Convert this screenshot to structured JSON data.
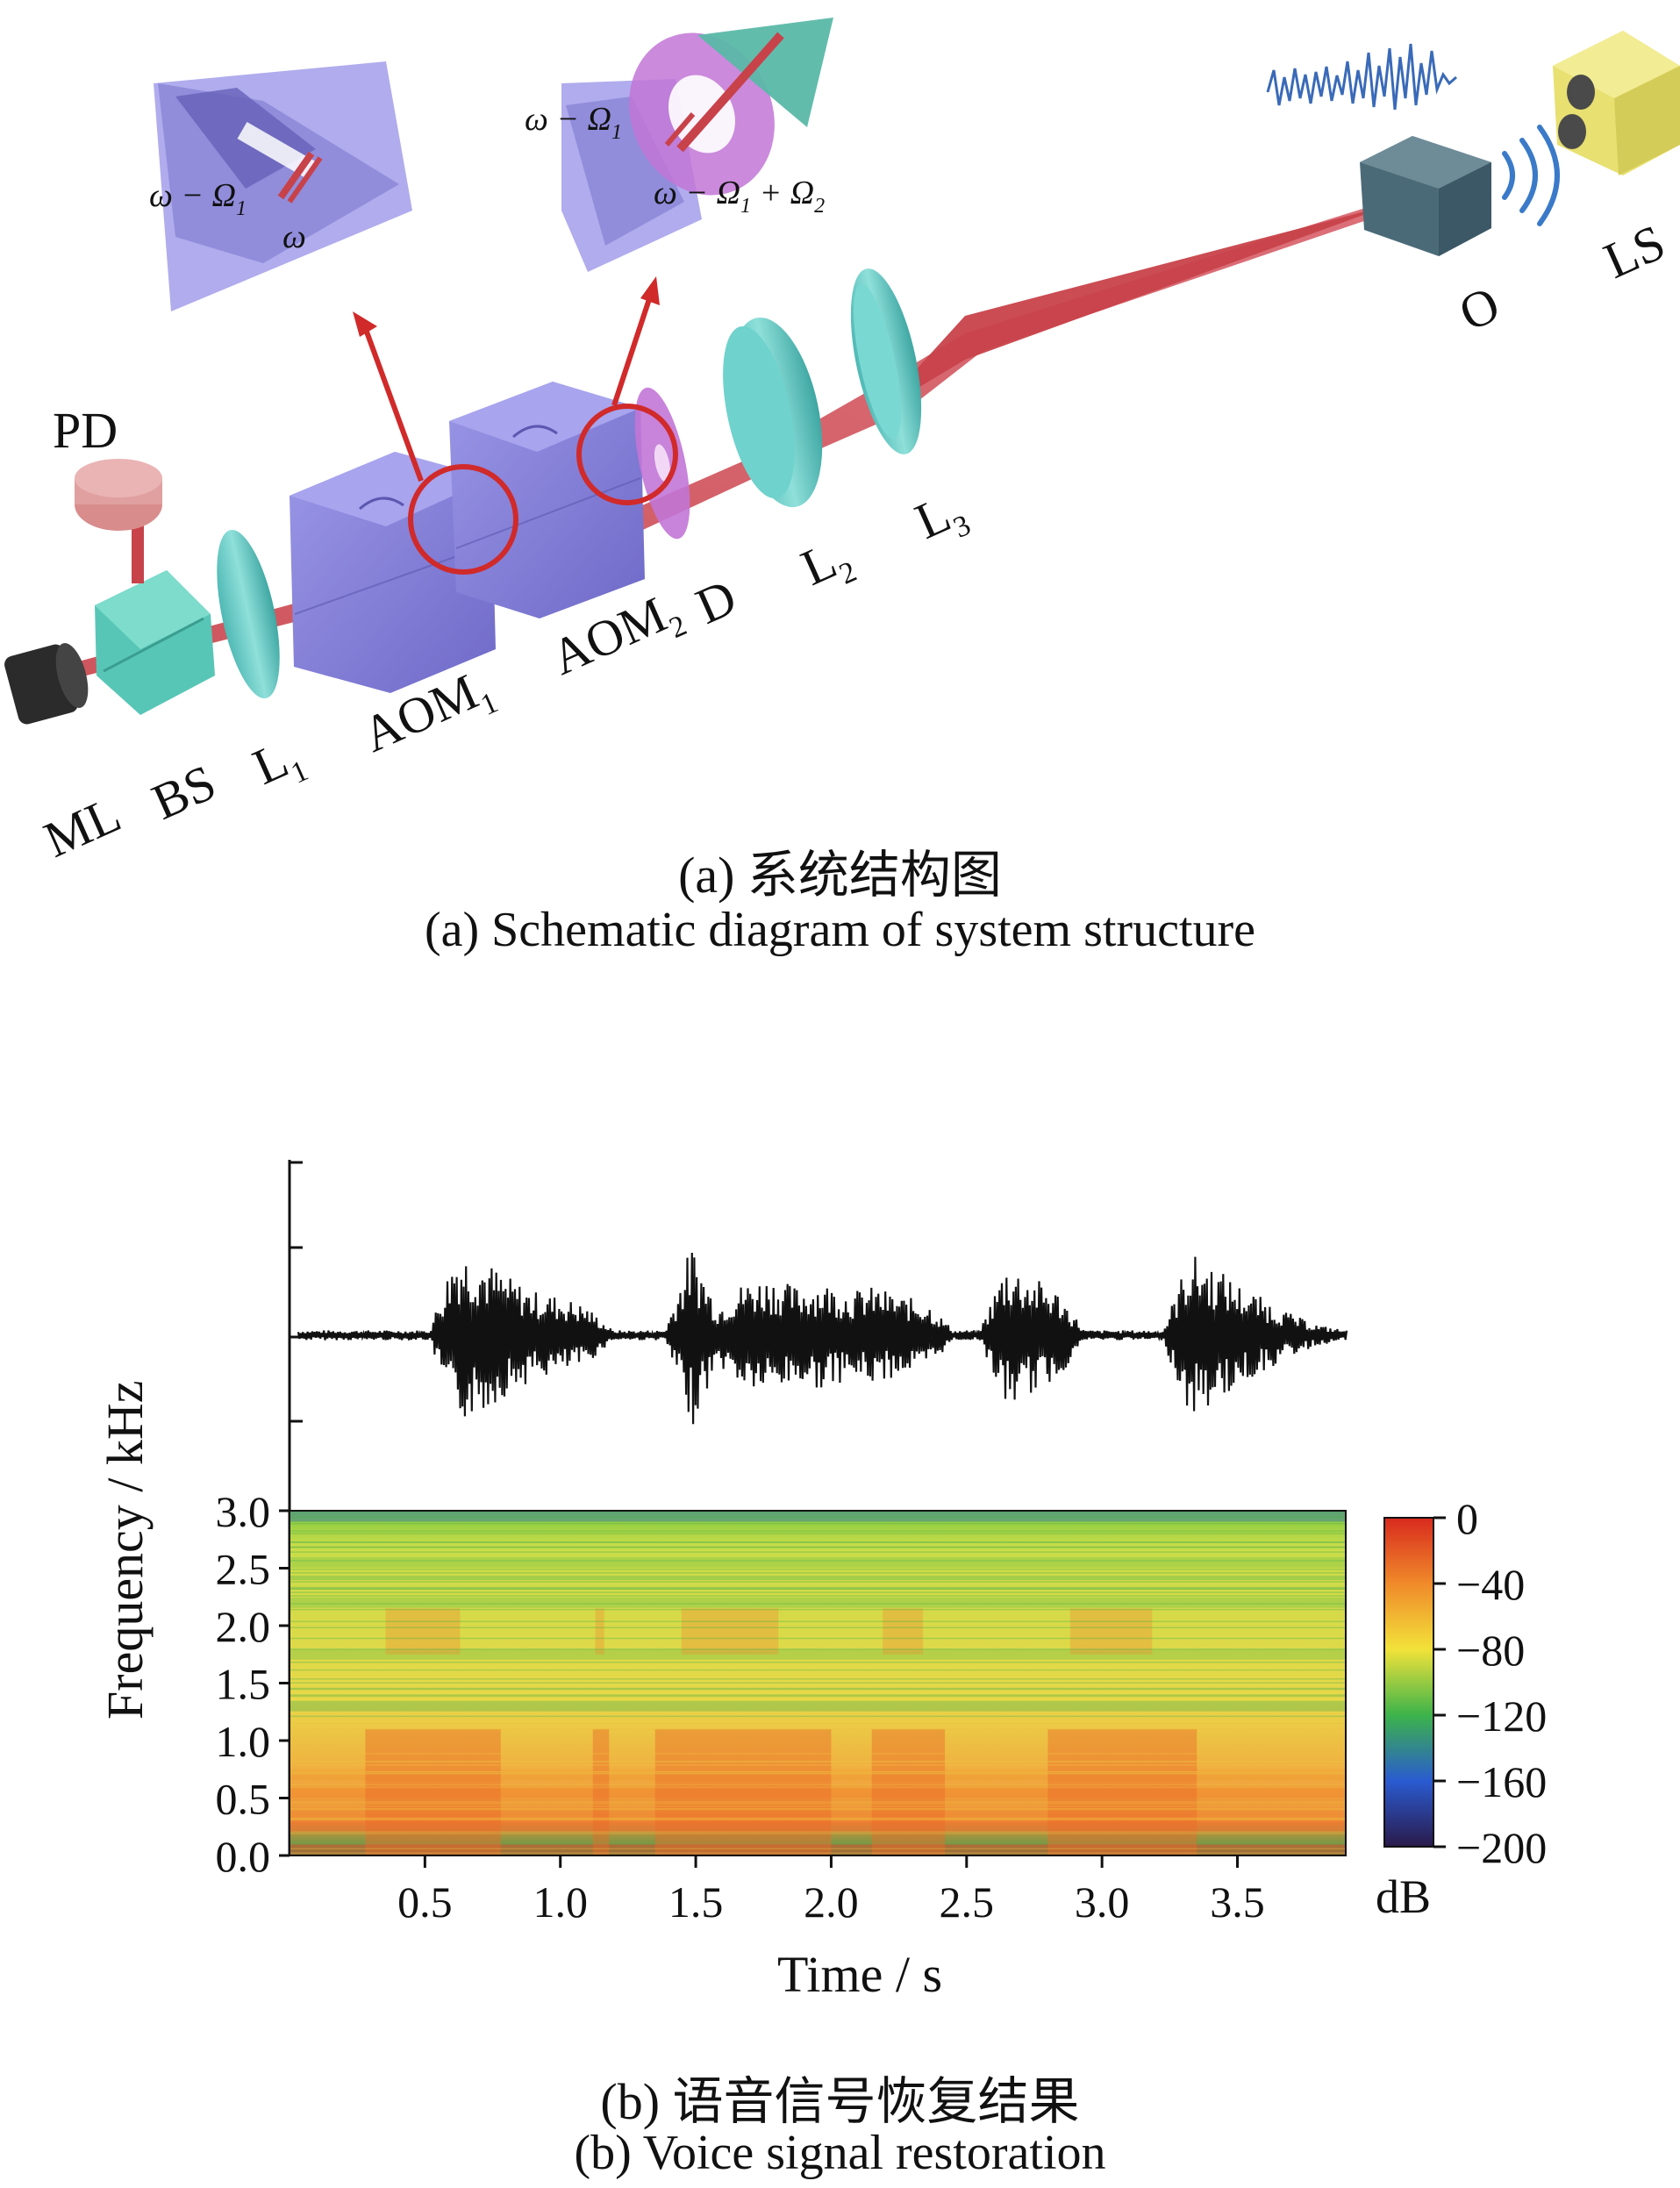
{
  "diagram": {
    "labels": {
      "ml": "ML",
      "bs": "BS",
      "l1": "L",
      "l1_sub": "1",
      "aom1": "AOM",
      "aom1_sub": "1",
      "aom2": "AOM",
      "aom2_sub": "2",
      "d": "D",
      "l2": "L",
      "l2_sub": "2",
      "l3": "L",
      "l3_sub": "3",
      "o": "O",
      "ls": "LS",
      "pd": "PD"
    },
    "inset1": {
      "beam_a": "ω − Ω",
      "beam_a_sub": "1",
      "beam_b": "ω"
    },
    "inset2": {
      "beam_a": "ω − Ω",
      "beam_a_sub": "1",
      "beam_b": "ω − Ω",
      "beam_b_sub": "1",
      "beam_b_mid": " + Ω",
      "beam_b_sub2": "2"
    },
    "colors": {
      "aom": "#8a86d8",
      "lens": "#5ec8c4",
      "beam": "#c0404a",
      "pd": "#d98c8c",
      "speaker": "#e8e070",
      "object": "#4a6a78",
      "d_plate": "#c276d6"
    }
  },
  "caption_a": {
    "zh": "(a) 系统结构图",
    "en": "(a) Schematic diagram of system structure"
  },
  "chart_data": {
    "type": "heatmap",
    "title": "",
    "xlabel": "Time / s",
    "ylabel": "Frequency / kHz",
    "x_ticks": [
      "0.5",
      "1.0",
      "1.5",
      "2.0",
      "2.5",
      "3.0",
      "3.5"
    ],
    "y_ticks": [
      "0.0",
      "0.5",
      "1.0",
      "1.5",
      "2.0",
      "2.5",
      "3.0"
    ],
    "xlim": [
      0.0,
      3.9
    ],
    "ylim": [
      0.0,
      3.0
    ],
    "colorbar": {
      "ticks": [
        "0",
        "−40",
        "−80",
        "−120",
        "−160",
        "−200"
      ],
      "range": [
        -200,
        0
      ],
      "unit": "dB",
      "colors": [
        "#d82a1e",
        "#f08a2a",
        "#f2e23a",
        "#3cb34a",
        "#2a5bd0",
        "#2a1a4a"
      ]
    },
    "speech_segments_s": [
      [
        0.28,
        0.78
      ],
      [
        1.12,
        1.18
      ],
      [
        1.35,
        2.0
      ],
      [
        2.15,
        2.42
      ],
      [
        2.8,
        3.35
      ]
    ],
    "waveform_amplitude_rel": [
      0.05,
      0.05,
      0.05,
      0.05,
      0.05,
      0.05,
      0.9,
      0.8,
      0.6,
      0.45,
      0.4,
      0.3,
      0.05,
      0.05,
      0.05,
      0.95,
      0.3,
      0.55,
      0.6,
      0.5,
      0.55,
      0.45,
      0.5,
      0.4,
      0.35,
      0.05,
      0.05,
      0.75,
      0.6,
      0.45,
      0.05,
      0.05,
      0.05,
      0.05,
      0.85,
      0.7,
      0.5,
      0.35,
      0.2,
      0.1,
      0.05
    ]
  },
  "caption_b": {
    "zh": "(b) 语音信号恢复结果",
    "en": "(b) Voice signal restoration"
  }
}
